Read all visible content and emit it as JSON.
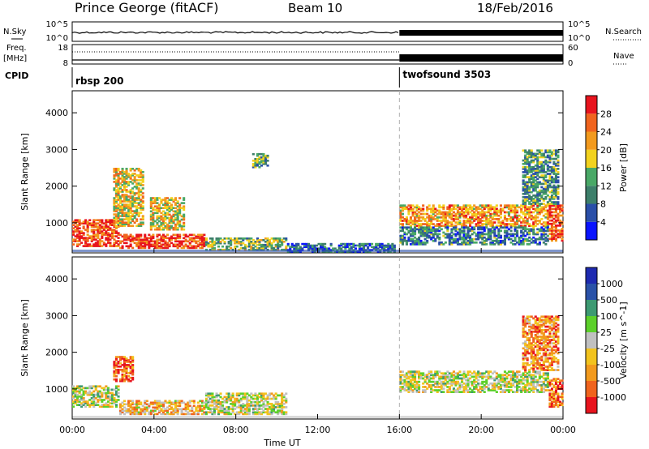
{
  "header": {
    "station": "Prince George (fitACF)",
    "beam": "Beam 10",
    "date": "18/Feb/2016"
  },
  "params": {
    "nsky_label": "N.Sky",
    "nsearch_label": "N.Search",
    "nsky_ticks": [
      "10^5",
      "10^0"
    ],
    "nsearch_ticks": [
      "10^5",
      "10^0"
    ],
    "freq_label": "Freq.",
    "freq_unit": "[MHz]",
    "freq_ticks": [
      "18",
      "8"
    ],
    "nave_label": "Nave",
    "nave_ticks": [
      "60",
      "0"
    ],
    "cpid_label": "CPID",
    "cpid_segments": [
      {
        "name": "rbsp 200",
        "start": "00:00",
        "end": "16:00"
      },
      {
        "name": "twofsound 3503",
        "start": "16:00",
        "end": "00:00"
      }
    ],
    "freq_series": [
      {
        "style": "dotted",
        "start_h": 0,
        "end_h": 16
      },
      {
        "style": "solid-band",
        "start_h": 16,
        "end_h": 24
      }
    ]
  },
  "colors": {
    "power": [
      "#0a14ff",
      "#2a4fa8",
      "#3d7f6a",
      "#49a866",
      "#f2d21e",
      "#f29a1e",
      "#f0641e",
      "#e8141e"
    ],
    "velocity": [
      "#e8141e",
      "#f0641e",
      "#f29a1e",
      "#f2c31e",
      "#c0c0c0",
      "#5cd02a",
      "#3d9a72",
      "#2a52a8",
      "#1e2ab0"
    ],
    "time_marker": "#b0b0b0"
  },
  "chart_data": [
    {
      "type": "heatmap",
      "title": "",
      "xlabel": "Time UT",
      "ylabel": "Slant Range [km]",
      "x_ticks": [
        "00:00",
        "04:00",
        "08:00",
        "12:00",
        "16:00",
        "20:00",
        "00:00"
      ],
      "y_ticks": [
        "1000",
        "2000",
        "3000",
        "4000"
      ],
      "xlim_hours": [
        0,
        24
      ],
      "ylim": [
        180,
        4600
      ],
      "colorbar_label": "Power [dB]",
      "colorbar_ticks": [
        "4",
        "8",
        "12",
        "16",
        "20",
        "24",
        "28"
      ],
      "colorbar_range": [
        0,
        32
      ],
      "regions": [
        {
          "t0": 0.0,
          "t1": 2.3,
          "r0": 350,
          "r1": 1100,
          "level": 0.85
        },
        {
          "t0": 2.3,
          "t1": 6.5,
          "r0": 300,
          "r1": 700,
          "level": 0.9
        },
        {
          "t0": 6.5,
          "t1": 10.5,
          "r0": 250,
          "r1": 600,
          "level": 0.45
        },
        {
          "t0": 10.5,
          "t1": 15.8,
          "r0": 200,
          "r1": 450,
          "level": 0.25
        },
        {
          "t0": 2.0,
          "t1": 3.5,
          "r0": 900,
          "r1": 2500,
          "level": 0.6
        },
        {
          "t0": 3.8,
          "t1": 5.5,
          "r0": 800,
          "r1": 1700,
          "level": 0.6
        },
        {
          "t0": 8.8,
          "t1": 9.6,
          "r0": 2500,
          "r1": 2900,
          "level": 0.4
        },
        {
          "t0": 16.0,
          "t1": 23.3,
          "r0": 900,
          "r1": 1500,
          "level": 0.7
        },
        {
          "t0": 16.0,
          "t1": 23.3,
          "r0": 400,
          "r1": 900,
          "level": 0.3
        },
        {
          "t0": 23.3,
          "t1": 24.0,
          "r0": 500,
          "r1": 1500,
          "level": 0.85
        },
        {
          "t0": 22.0,
          "t1": 23.8,
          "r0": 1500,
          "r1": 3000,
          "level": 0.35
        }
      ]
    },
    {
      "type": "heatmap",
      "title": "",
      "xlabel": "Time UT",
      "ylabel": "Slant Range [km]",
      "x_ticks": [
        "00:00",
        "04:00",
        "08:00",
        "12:00",
        "16:00",
        "20:00",
        "00:00"
      ],
      "y_ticks": [
        "1000",
        "2000",
        "3000",
        "4000"
      ],
      "xlim_hours": [
        0,
        24
      ],
      "ylim": [
        180,
        4600
      ],
      "colorbar_label": "Velocity [m s^-1]",
      "colorbar_ticks": [
        "1000",
        "500",
        "100",
        "25",
        "-25",
        "-100",
        "-500",
        "-1000"
      ],
      "regions": [
        {
          "t0": 0.0,
          "t1": 2.3,
          "r0": 500,
          "r1": 1100,
          "level": 0.5
        },
        {
          "t0": 2.3,
          "t1": 6.5,
          "r0": 300,
          "r1": 700,
          "level": 0.35
        },
        {
          "t0": 6.5,
          "t1": 10.5,
          "r0": 300,
          "r1": 900,
          "level": 0.5
        },
        {
          "t0": 2.0,
          "t1": 3.0,
          "r0": 1200,
          "r1": 1900,
          "level": 0.15
        },
        {
          "t0": 16.0,
          "t1": 23.3,
          "r0": 900,
          "r1": 1500,
          "level": 0.5
        },
        {
          "t0": 23.3,
          "t1": 24.0,
          "r0": 500,
          "r1": 1300,
          "level": 0.2
        },
        {
          "t0": 22.0,
          "t1": 23.8,
          "r0": 1500,
          "r1": 3000,
          "level": 0.25
        }
      ]
    }
  ]
}
